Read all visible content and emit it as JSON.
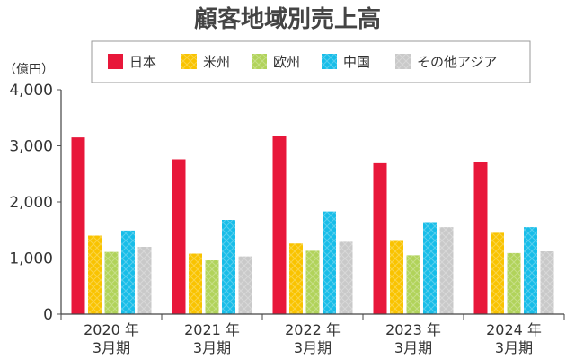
{
  "chart_data": {
    "type": "bar",
    "title": "顧客地域別売上高",
    "unit_label": "（億円）",
    "categories": [
      {
        "line1": "2020 年",
        "line2": "3月期"
      },
      {
        "line1": "2021 年",
        "line2": "3月期"
      },
      {
        "line1": "2022 年",
        "line2": "3月期"
      },
      {
        "line1": "2023 年",
        "line2": "3月期"
      },
      {
        "line1": "2024 年",
        "line2": "3月期"
      }
    ],
    "series": [
      {
        "name": "日本",
        "color": "#e8173a",
        "pattern": false,
        "values": [
          3150,
          2760,
          3180,
          2690,
          2720
        ]
      },
      {
        "name": "米州",
        "color": "#f9c300",
        "pattern": true,
        "values": [
          1400,
          1080,
          1260,
          1320,
          1450
        ]
      },
      {
        "name": "欧州",
        "color": "#b1d35a",
        "pattern": true,
        "values": [
          1110,
          960,
          1130,
          1050,
          1090
        ]
      },
      {
        "name": "中国",
        "color": "#18bde8",
        "pattern": true,
        "values": [
          1490,
          1680,
          1830,
          1640,
          1550
        ]
      },
      {
        "name": "その他アジア",
        "color": "#c9c9c9",
        "pattern": true,
        "values": [
          1200,
          1030,
          1290,
          1550,
          1120
        ]
      }
    ],
    "ylim": [
      0,
      4000
    ],
    "yticks": [
      {
        "value": 0,
        "label": "0"
      },
      {
        "value": 1000,
        "label": "1,000"
      },
      {
        "value": 2000,
        "label": "2,000"
      },
      {
        "value": 3000,
        "label": "3,000"
      },
      {
        "value": 4000,
        "label": "4,000"
      }
    ],
    "legend_position": "top"
  }
}
